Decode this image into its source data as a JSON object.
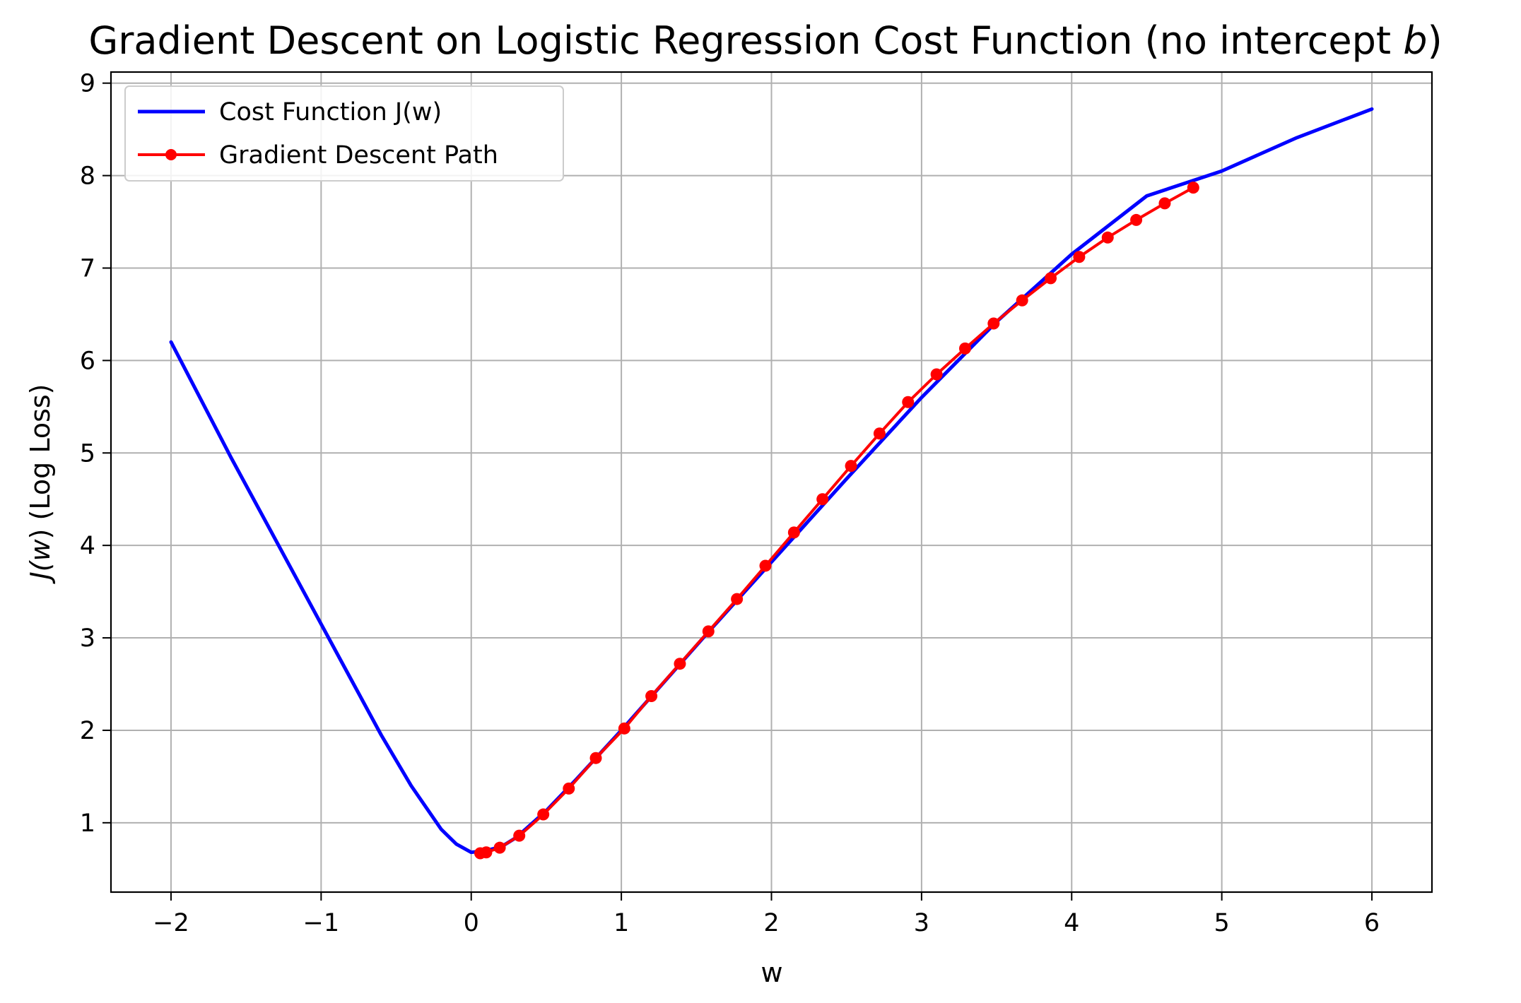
{
  "chart_data": {
    "type": "line",
    "title_main": "Gradient Descent on Logistic Regression Cost Function (no intercept ",
    "title_var": "b",
    "title_close": ")",
    "xlabel": "w",
    "ylabel_prefix": "J(",
    "ylabel_var": "w",
    "ylabel_suffix": ") (Log Loss)",
    "xlim": [
      -2.4,
      6.4
    ],
    "ylim": [
      0.25,
      9.12
    ],
    "xticks": [
      -2,
      -1,
      0,
      1,
      2,
      3,
      4,
      5,
      6
    ],
    "xtick_labels": [
      "−2",
      "−1",
      "0",
      "1",
      "2",
      "3",
      "4",
      "5",
      "6"
    ],
    "yticks": [
      1,
      2,
      3,
      4,
      5,
      6,
      7,
      8,
      9
    ],
    "ytick_labels": [
      "1",
      "2",
      "3",
      "4",
      "5",
      "6",
      "7",
      "8",
      "9"
    ],
    "grid": true,
    "legend_position": "top-left",
    "series": [
      {
        "name": "Cost Function J(w)",
        "color": "#0000ff",
        "style": "line",
        "x": [
          -2.0,
          -1.6,
          -1.2,
          -1.0,
          -0.8,
          -0.6,
          -0.4,
          -0.2,
          -0.1,
          0.0,
          0.1,
          0.2,
          0.3,
          0.5,
          0.7,
          1.0,
          1.3,
          1.6,
          2.0,
          2.5,
          3.0,
          3.5,
          4.0,
          4.5,
          5.0,
          5.5,
          6.0
        ],
        "y": [
          6.2,
          4.95,
          3.75,
          3.15,
          2.55,
          1.95,
          1.4,
          0.93,
          0.77,
          0.68,
          0.7,
          0.74,
          0.84,
          1.13,
          1.47,
          2.0,
          2.55,
          3.1,
          3.82,
          4.72,
          5.6,
          6.42,
          7.15,
          7.78,
          8.05,
          8.41,
          8.72
        ]
      },
      {
        "name": "Gradient Descent Path",
        "color": "#ff0000",
        "style": "line-markers",
        "x": [
          4.81,
          4.62,
          4.43,
          4.24,
          4.05,
          3.86,
          3.67,
          3.48,
          3.29,
          3.1,
          2.91,
          2.72,
          2.53,
          2.34,
          2.15,
          1.96,
          1.77,
          1.58,
          1.39,
          1.2,
          1.02,
          0.83,
          0.65,
          0.48,
          0.32,
          0.19,
          0.1,
          0.06
        ],
        "y": [
          7.87,
          7.7,
          7.52,
          7.33,
          7.12,
          6.89,
          6.65,
          6.4,
          6.13,
          5.85,
          5.55,
          5.21,
          4.86,
          4.5,
          4.14,
          3.78,
          3.42,
          3.07,
          2.72,
          2.37,
          2.02,
          1.7,
          1.37,
          1.09,
          0.86,
          0.73,
          0.68,
          0.67
        ]
      }
    ]
  }
}
